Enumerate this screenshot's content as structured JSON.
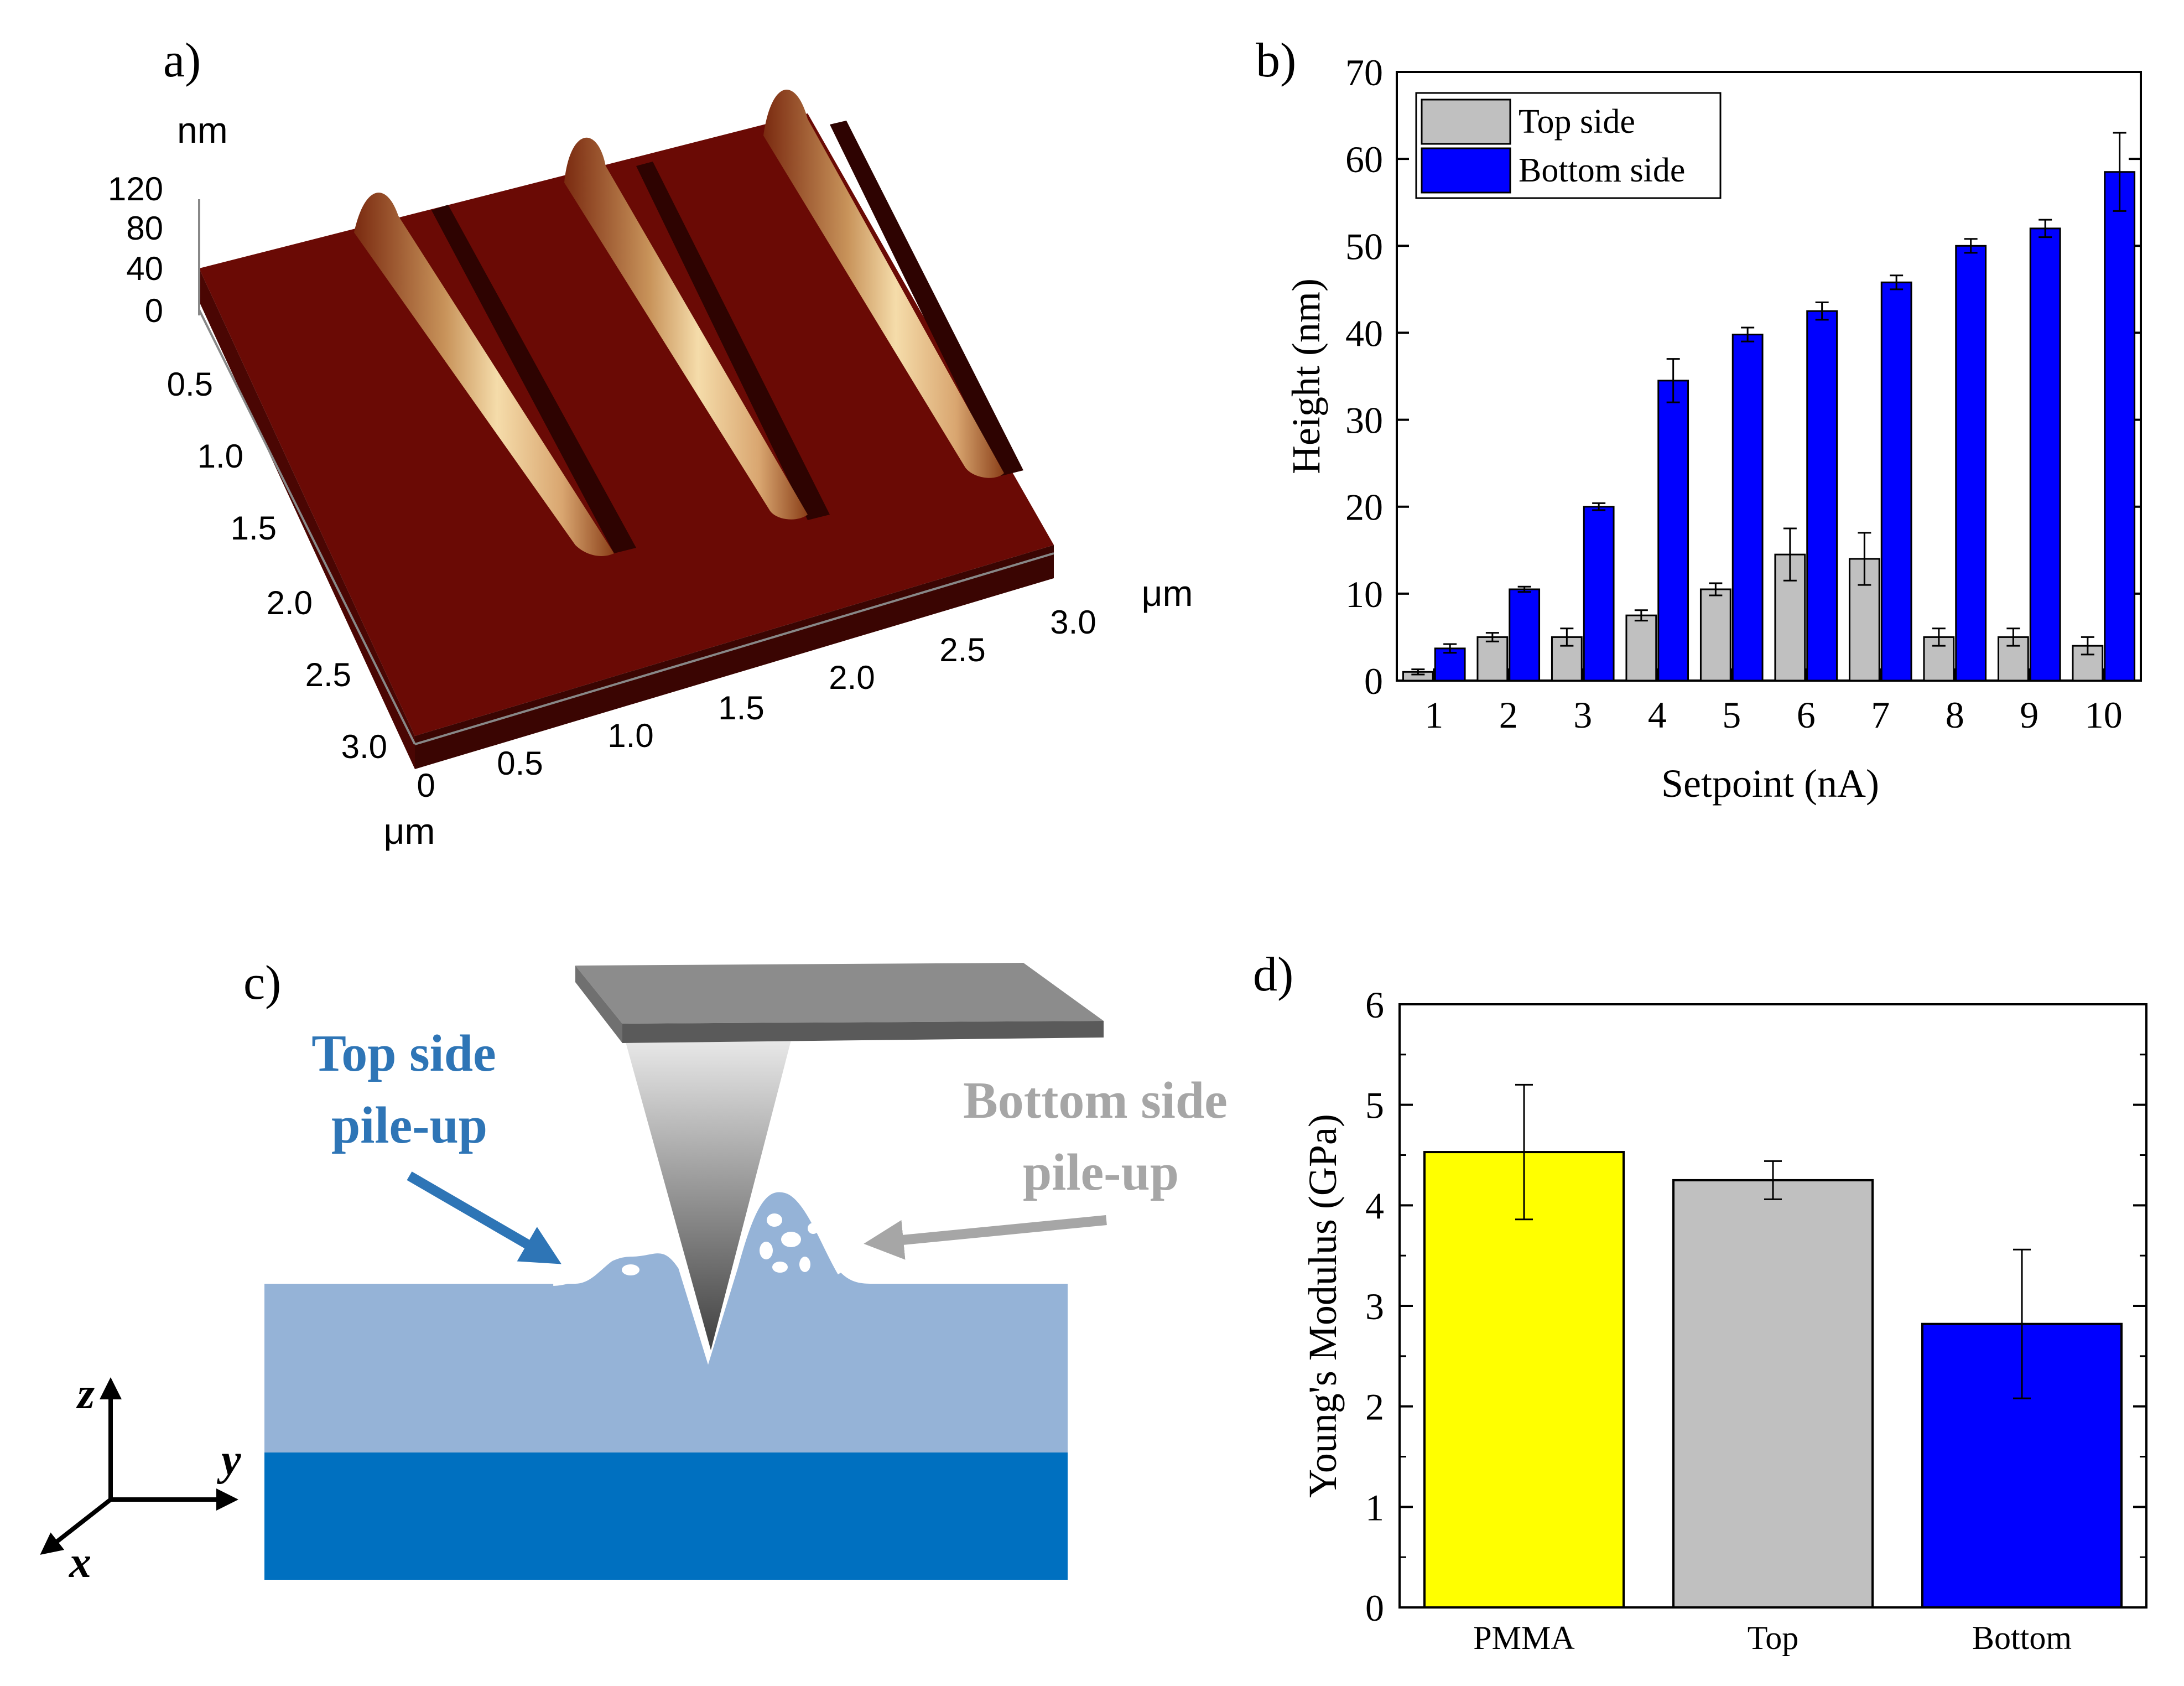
{
  "panels": {
    "a": {
      "label": "a)",
      "z_unit": "nm",
      "z_ticks": [
        "120",
        "80",
        "40",
        "0"
      ],
      "y_ticks": [
        "0.5",
        "1.0",
        "1.5",
        "2.0",
        "2.5",
        "3.0"
      ],
      "y_unit": "μm",
      "x_ticks": [
        "0",
        "0.5",
        "1.0",
        "1.5",
        "2.0",
        "2.5",
        "3.0"
      ],
      "x_unit": "μm",
      "colors": {
        "surface": "#6a0a05",
        "side": "#3a0502",
        "ridge_light": "#f2d5a0",
        "ridge_mid": "#c8935a"
      }
    },
    "c": {
      "label": "c)",
      "top_label_1": "Top side",
      "top_label_2": "pile-up",
      "bottom_label_1": "Bottom side",
      "bottom_label_2": "pile-up",
      "axis_z": "z",
      "axis_y": "y",
      "axis_x": "x",
      "colors": {
        "film": "#95b3d7",
        "substrate": "#0070c0",
        "top_text": "#2e75b6",
        "bottom_text": "#a6a6a6",
        "cantilever": "#8c8c8c"
      }
    }
  },
  "chart_data": [
    {
      "id": "b",
      "label": "b)",
      "type": "bar",
      "categories": [
        "1",
        "2",
        "3",
        "4",
        "5",
        "6",
        "7",
        "8",
        "9",
        "10"
      ],
      "series": [
        {
          "name": "Top side",
          "color": "#c0c0c0",
          "values": [
            1,
            5,
            5,
            7.5,
            10.5,
            14.5,
            14,
            5,
            5,
            4
          ],
          "errors": [
            0.3,
            0.5,
            1,
            0.6,
            0.7,
            3,
            3,
            1,
            1,
            1
          ]
        },
        {
          "name": "Bottom side",
          "color": "#0000ff",
          "values": [
            3.7,
            10.5,
            20,
            34.5,
            39.8,
            42.5,
            45.8,
            50,
            52,
            58.5
          ],
          "errors": [
            0.5,
            0.3,
            0.4,
            2.5,
            0.8,
            1,
            0.8,
            0.8,
            1,
            4.5
          ]
        }
      ],
      "xlabel": "Setpoint (nA)",
      "ylabel": "Height (nm)",
      "ylim": [
        0,
        70
      ],
      "yticks": [
        0,
        10,
        20,
        30,
        40,
        50,
        60,
        70
      ],
      "legend_position": "top-left"
    },
    {
      "id": "d",
      "label": "d)",
      "type": "bar",
      "categories": [
        "PMMA",
        "Top",
        "Bottom"
      ],
      "values": [
        4.53,
        4.25,
        2.82
      ],
      "errors": [
        0.67,
        0.19,
        0.74
      ],
      "colors": [
        "#ffff00",
        "#c0c0c0",
        "#0000ff"
      ],
      "xlabel": "",
      "ylabel": "Young's Modulus (GPa)",
      "ylim": [
        0,
        6
      ],
      "yticks": [
        0,
        1,
        2,
        3,
        4,
        5,
        6
      ]
    }
  ]
}
